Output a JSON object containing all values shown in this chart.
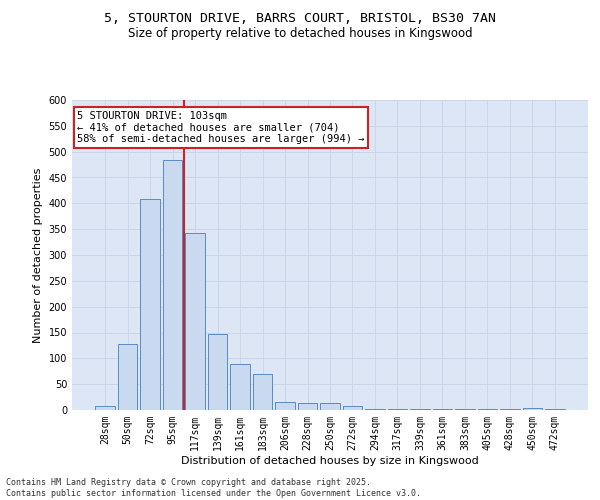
{
  "title_line1": "5, STOURTON DRIVE, BARRS COURT, BRISTOL, BS30 7AN",
  "title_line2": "Size of property relative to detached houses in Kingswood",
  "xlabel": "Distribution of detached houses by size in Kingswood",
  "ylabel": "Number of detached properties",
  "categories": [
    "28sqm",
    "50sqm",
    "72sqm",
    "95sqm",
    "117sqm",
    "139sqm",
    "161sqm",
    "183sqm",
    "206sqm",
    "228sqm",
    "250sqm",
    "272sqm",
    "294sqm",
    "317sqm",
    "339sqm",
    "361sqm",
    "383sqm",
    "405sqm",
    "428sqm",
    "450sqm",
    "472sqm"
  ],
  "values": [
    8,
    128,
    408,
    483,
    343,
    148,
    90,
    70,
    15,
    13,
    13,
    7,
    2,
    2,
    2,
    2,
    2,
    2,
    2,
    3,
    2
  ],
  "bar_color": "#c9d9f0",
  "bar_edge_color": "#5a8ac6",
  "vline_x": 3.5,
  "vline_color": "#cc2222",
  "annotation_text": "5 STOURTON DRIVE: 103sqm\n← 41% of detached houses are smaller (704)\n58% of semi-detached houses are larger (994) →",
  "annotation_box_color": "white",
  "annotation_box_edge_color": "#cc2222",
  "ylim": [
    0,
    600
  ],
  "yticks": [
    0,
    50,
    100,
    150,
    200,
    250,
    300,
    350,
    400,
    450,
    500,
    550,
    600
  ],
  "grid_color": "#c8d4e8",
  "bg_color": "#dce6f5",
  "footer_line1": "Contains HM Land Registry data © Crown copyright and database right 2025.",
  "footer_line2": "Contains public sector information licensed under the Open Government Licence v3.0.",
  "title_fontsize": 9.5,
  "subtitle_fontsize": 8.5,
  "tick_fontsize": 7,
  "label_fontsize": 8,
  "annotation_fontsize": 7.5,
  "footer_fontsize": 6
}
